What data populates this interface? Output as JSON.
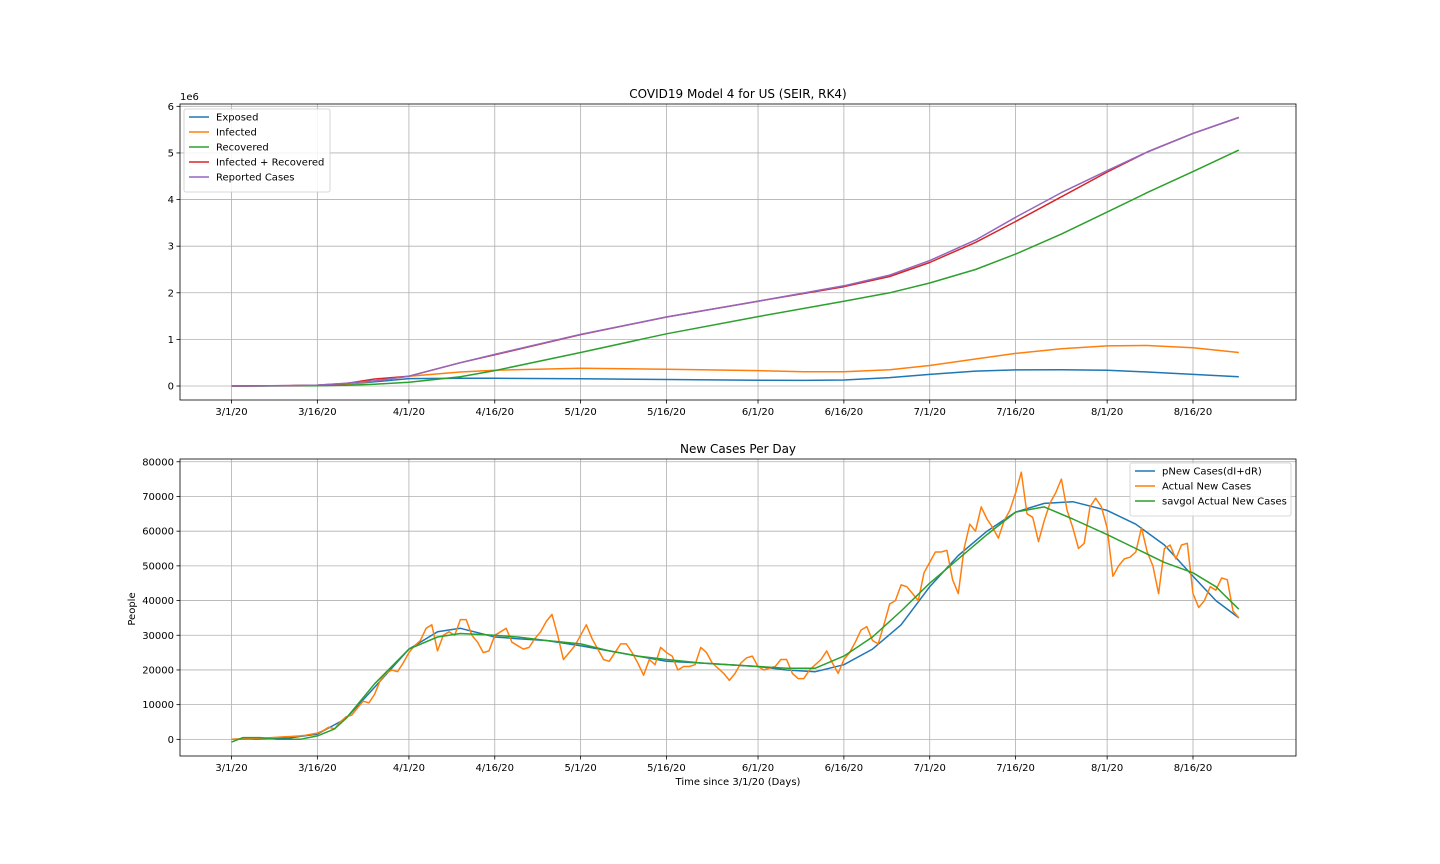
{
  "chart_data": [
    {
      "type": "line",
      "title": "COVID19 Model 4 for US (SEIR, RK4)",
      "xlabel": "",
      "ylabel": "",
      "y_offset_text": "1e6",
      "x_tick_labels": [
        "3/1/20",
        "3/16/20",
        "4/1/20",
        "4/16/20",
        "5/1/20",
        "5/16/20",
        "6/1/20",
        "6/16/20",
        "7/1/20",
        "7/16/20",
        "8/1/20",
        "8/16/20"
      ],
      "x_tick_days": [
        0,
        15,
        31,
        46,
        61,
        76,
        92,
        107,
        122,
        137,
        153,
        168
      ],
      "x_range_days": [
        -9,
        186
      ],
      "ylim": [
        -300000,
        6050000
      ],
      "y_ticks": [
        0,
        1000000,
        2000000,
        3000000,
        4000000,
        5000000,
        6000000
      ],
      "y_tick_labels": [
        "0",
        "1",
        "2",
        "3",
        "4",
        "5",
        "6"
      ],
      "grid": true,
      "legend_position": "top-left",
      "series": [
        {
          "name": "Exposed",
          "color": "#1f77b4",
          "x": [
            0,
            10,
            15,
            20,
            25,
            31,
            40,
            46,
            61,
            76,
            92,
            100,
            107,
            115,
            122,
            130,
            137,
            145,
            153,
            160,
            168,
            176
          ],
          "y": [
            0,
            4000,
            12000,
            40000,
            90000,
            160000,
            168000,
            165000,
            155000,
            140000,
            125000,
            120000,
            128000,
            180000,
            250000,
            320000,
            345000,
            350000,
            340000,
            300000,
            250000,
            200000
          ]
        },
        {
          "name": "Infected",
          "color": "#ff7f0e",
          "x": [
            0,
            10,
            15,
            20,
            25,
            31,
            40,
            46,
            61,
            76,
            92,
            100,
            107,
            115,
            122,
            130,
            137,
            145,
            153,
            160,
            168,
            176
          ],
          "y": [
            0,
            6000,
            15000,
            40000,
            110000,
            210000,
            300000,
            340000,
            380000,
            360000,
            330000,
            305000,
            305000,
            350000,
            440000,
            580000,
            700000,
            800000,
            860000,
            870000,
            820000,
            720000
          ]
        },
        {
          "name": "Recovered",
          "color": "#2ca02c",
          "x": [
            0,
            10,
            15,
            20,
            25,
            31,
            40,
            46,
            61,
            76,
            92,
            107,
            115,
            122,
            130,
            137,
            145,
            153,
            160,
            168,
            176
          ],
          "y": [
            0,
            2000,
            5000,
            15000,
            40000,
            80000,
            200000,
            330000,
            720000,
            1120000,
            1490000,
            1820000,
            2000000,
            2210000,
            2500000,
            2830000,
            3260000,
            3730000,
            4150000,
            4600000,
            5060000
          ]
        },
        {
          "name": "Infected + Recovered",
          "color": "#d62728",
          "x": [
            0,
            10,
            15,
            20,
            25,
            31,
            40,
            46,
            61,
            76,
            92,
            107,
            115,
            122,
            130,
            137,
            145,
            153,
            160,
            168,
            176
          ],
          "y": [
            0,
            8000,
            20000,
            55000,
            150000,
            210000,
            500000,
            670000,
            1100000,
            1480000,
            1820000,
            2130000,
            2350000,
            2650000,
            3080000,
            3530000,
            4060000,
            4590000,
            5020000,
            5420000,
            5760000
          ]
        },
        {
          "name": "Reported Cases",
          "color": "#9467bd",
          "x": [
            0,
            10,
            15,
            20,
            25,
            31,
            40,
            46,
            61,
            76,
            92,
            107,
            115,
            122,
            130,
            137,
            145,
            153,
            160,
            168,
            176
          ],
          "y": [
            0,
            8000,
            20000,
            60000,
            110000,
            210000,
            500000,
            680000,
            1110000,
            1480000,
            1820000,
            2150000,
            2380000,
            2690000,
            3130000,
            3620000,
            4150000,
            4620000,
            5020000,
            5420000,
            5760000
          ]
        }
      ]
    },
    {
      "type": "line",
      "title": "New Cases Per Day",
      "xlabel": "Time since 3/1/20 (Days)",
      "ylabel": "People",
      "x_tick_labels": [
        "3/1/20",
        "3/16/20",
        "4/1/20",
        "4/16/20",
        "5/1/20",
        "5/16/20",
        "6/1/20",
        "6/16/20",
        "7/1/20",
        "7/16/20",
        "8/1/20",
        "8/16/20"
      ],
      "x_tick_days": [
        0,
        15,
        31,
        46,
        61,
        76,
        92,
        107,
        122,
        137,
        153,
        168
      ],
      "x_range_days": [
        -9,
        186
      ],
      "ylim": [
        -4800,
        80800
      ],
      "y_ticks": [
        0,
        10000,
        20000,
        30000,
        40000,
        50000,
        60000,
        70000,
        80000
      ],
      "y_tick_labels": [
        "0",
        "10000",
        "20000",
        "30000",
        "40000",
        "50000",
        "60000",
        "70000",
        "80000"
      ],
      "grid": true,
      "legend_position": "top-right",
      "series": [
        {
          "name": "pNew Cases(dI+dR)",
          "color": "#1f77b4",
          "x": [
            0,
            5,
            10,
            15,
            20,
            25,
            31,
            36,
            40,
            46,
            50,
            55,
            61,
            66,
            71,
            76,
            82,
            87,
            92,
            97,
            102,
            107,
            112,
            117,
            122,
            127,
            132,
            137,
            142,
            147,
            153,
            158,
            163,
            168,
            172,
            176
          ],
          "y": [
            0,
            100,
            400,
            1500,
            6000,
            15000,
            26000,
            31000,
            32000,
            29500,
            29000,
            28500,
            27000,
            25500,
            24000,
            22500,
            22000,
            21500,
            21000,
            20000,
            19500,
            21500,
            26000,
            33000,
            44000,
            53000,
            60000,
            65500,
            68000,
            68500,
            66000,
            62000,
            56000,
            47000,
            40000,
            35000
          ]
        },
        {
          "name": "Actual New Cases",
          "color": "#ff7f0e",
          "x": [
            0,
            1,
            2,
            3,
            4,
            5,
            6,
            7,
            8,
            9,
            10,
            11,
            12,
            13,
            14,
            15,
            16,
            17,
            18,
            19,
            20,
            21,
            22,
            23,
            24,
            25,
            26,
            27,
            28,
            29,
            30,
            31,
            32,
            33,
            34,
            35,
            36,
            37,
            38,
            39,
            40,
            41,
            42,
            43,
            44,
            45,
            46,
            47,
            48,
            49,
            50,
            51,
            52,
            53,
            54,
            55,
            56,
            57,
            58,
            59,
            60,
            61,
            62,
            63,
            64,
            65,
            66,
            67,
            68,
            69,
            70,
            71,
            72,
            73,
            74,
            75,
            76,
            77,
            78,
            79,
            80,
            81,
            82,
            83,
            84,
            85,
            86,
            87,
            88,
            89,
            90,
            91,
            92,
            93,
            94,
            95,
            96,
            97,
            98,
            99,
            100,
            101,
            102,
            103,
            104,
            105,
            106,
            107,
            108,
            109,
            110,
            111,
            112,
            113,
            114,
            115,
            116,
            117,
            118,
            119,
            120,
            121,
            122,
            123,
            124,
            125,
            126,
            127,
            128,
            129,
            130,
            131,
            132,
            133,
            134,
            135,
            136,
            137,
            138,
            139,
            140,
            141,
            142,
            143,
            144,
            145,
            146,
            147,
            148,
            149,
            150,
            151,
            152,
            153,
            154,
            155,
            156,
            157,
            158,
            159,
            160,
            161,
            162,
            163,
            164,
            165,
            166,
            167,
            168,
            169,
            170,
            171,
            172,
            173,
            174,
            175,
            176
          ],
          "y": [
            0,
            100,
            200,
            200,
            300,
            300,
            400,
            500,
            600,
            700,
            800,
            900,
            1000,
            1200,
            1500,
            1800,
            2500,
            3500,
            3000,
            5000,
            6500,
            7000,
            9000,
            11000,
            10500,
            13000,
            17000,
            19000,
            20000,
            19500,
            22000,
            25000,
            27000,
            28500,
            32000,
            33000,
            25500,
            30000,
            31000,
            30000,
            34500,
            34500,
            30000,
            28000,
            25000,
            25500,
            30000,
            31000,
            32000,
            28000,
            27000,
            26000,
            26500,
            29000,
            31000,
            34000,
            36000,
            30000,
            23000,
            25000,
            27000,
            30000,
            33000,
            29000,
            26000,
            23000,
            22500,
            25000,
            27500,
            27500,
            25000,
            22000,
            18500,
            23000,
            21500,
            26500,
            25000,
            24000,
            20000,
            21000,
            21000,
            21500,
            26500,
            25000,
            22000,
            20500,
            19000,
            17000,
            19000,
            22000,
            23500,
            24000,
            21000,
            20000,
            20500,
            21000,
            23000,
            23000,
            19000,
            17500,
            17500,
            20000,
            21500,
            23000,
            25500,
            22000,
            19000,
            23000,
            25000,
            28000,
            31500,
            32500,
            28500,
            27500,
            33000,
            39000,
            40000,
            44500,
            44000,
            42000,
            40000,
            48000,
            51000,
            54000,
            54000,
            54500,
            46000,
            42000,
            55000,
            62000,
            60000,
            67000,
            63500,
            61000,
            58000,
            63000,
            66000,
            71000,
            77000,
            65000,
            64000,
            57000,
            63000,
            68000,
            71000,
            75000,
            66000,
            61000,
            55000,
            56500,
            67000,
            69500,
            67000,
            61000,
            47000,
            50000,
            52000,
            52500,
            54000,
            61000,
            54000,
            50000,
            42000,
            55000,
            56000,
            52000,
            56000,
            56500,
            42000,
            38000,
            40000,
            44000,
            43000,
            46500,
            46000,
            37000,
            35000
          ]
        },
        {
          "name": "savgol Actual New Cases",
          "color": "#2ca02c",
          "x": [
            0,
            2,
            5,
            8,
            12,
            15,
            18,
            20,
            25,
            31,
            36,
            40,
            46,
            50,
            55,
            61,
            66,
            71,
            76,
            82,
            87,
            92,
            97,
            102,
            107,
            112,
            117,
            122,
            127,
            132,
            137,
            142,
            147,
            153,
            158,
            163,
            168,
            172,
            176
          ],
          "y": [
            -800,
            500,
            500,
            0,
            0,
            1000,
            3000,
            6000,
            16000,
            26000,
            29500,
            30500,
            30000,
            29500,
            28500,
            27500,
            25500,
            24000,
            23000,
            22000,
            21500,
            21000,
            20500,
            20500,
            24000,
            29500,
            37000,
            45000,
            52000,
            59000,
            65500,
            67000,
            63500,
            59000,
            55000,
            51000,
            48000,
            44000,
            37500
          ]
        }
      ]
    }
  ]
}
